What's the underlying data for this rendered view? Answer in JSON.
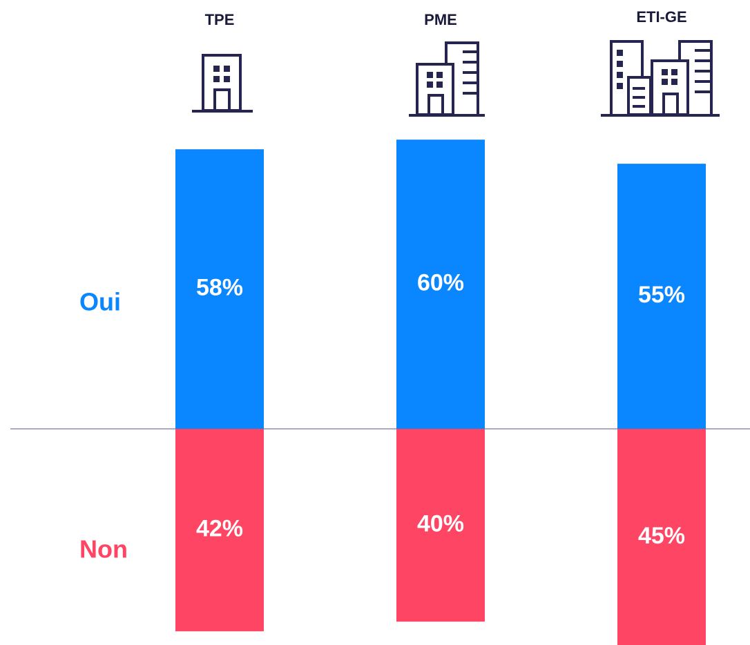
{
  "chart_data": {
    "type": "diverging_bar",
    "categories": [
      "TPE",
      "PME",
      "ETI-GE"
    ],
    "series": [
      {
        "name": "Oui",
        "color": "#0a86ff",
        "values": [
          58,
          60,
          55
        ],
        "value_labels": [
          "58%",
          "60%",
          "55%"
        ]
      },
      {
        "name": "Non",
        "color": "#ff4564",
        "values": [
          42,
          40,
          45
        ],
        "value_labels": [
          "42%",
          "40%",
          "45%"
        ]
      }
    ]
  }
}
